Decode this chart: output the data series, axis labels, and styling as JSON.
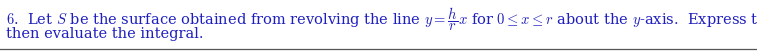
{
  "line1": "\\textbf{6}.  Let $S$ be the surface obtained from revolving the line $y = \\dfrac{h}{r}x$ for $0 \\leq x \\leq r$ about the $y$-axis.  Express the area of $S$ as a double integral",
  "line2": "then evaluate the integral.",
  "text_color": "#1f1fbf",
  "bg_color": "#ffffff",
  "font_size": 10.5,
  "fig_width": 7.57,
  "fig_height": 0.51,
  "dpi": 100,
  "line_color": "#555555",
  "bold_6": "6"
}
